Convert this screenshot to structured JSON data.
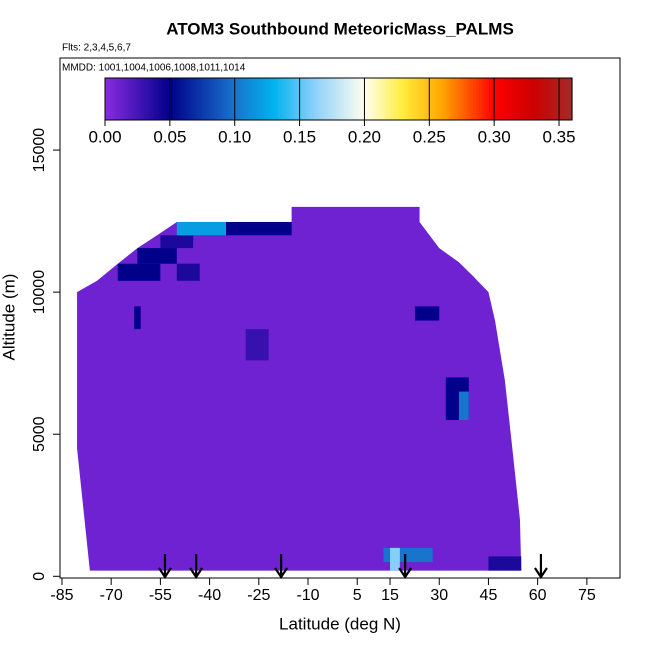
{
  "chart_data": {
    "type": "heatmap",
    "title": "ATOM3 Southbound MeteoricMass_PALMS",
    "subtitle": "Flts: 2,3,4,5,6,7",
    "annotation": "MMDD: 1001,1004,1006,1008,1011,1014",
    "x_label": "Latitude (deg N)",
    "y_label": "Altitude (m)",
    "xlim": [
      -85.6,
      85.1
    ],
    "ylim": [
      -60,
      18240
    ],
    "xticks": [
      -85,
      -70,
      -55,
      -40,
      -25,
      -10,
      5,
      15,
      30,
      45,
      60,
      75
    ],
    "yticks": [
      0,
      5000,
      10000,
      15000
    ],
    "colorbar": {
      "lim": [
        0,
        0.36
      ],
      "ticks": [
        {
          "value": 0,
          "label": "0.00"
        },
        {
          "value": 0.05,
          "label": "0.05"
        },
        {
          "value": 0.1,
          "label": "0.10"
        },
        {
          "value": 0.15,
          "label": "0.15"
        },
        {
          "value": 0.2,
          "label": "0.20"
        },
        {
          "value": 0.25,
          "label": "0.25"
        },
        {
          "value": 0.3,
          "label": "0.30"
        },
        {
          "value": 0.35,
          "label": "0.35"
        }
      ],
      "colorscale": [
        [
          0,
          "#8a2be2"
        ],
        [
          0.05,
          "#00008b"
        ],
        [
          0.1,
          "#1874cd"
        ],
        [
          0.13,
          "#00b2ee"
        ],
        [
          0.16,
          "#87cefa"
        ],
        [
          0.2,
          "#fffff0"
        ],
        [
          0.23,
          "#ffec3b"
        ],
        [
          0.26,
          "#ffa500"
        ],
        [
          0.3,
          "#ff0000"
        ],
        [
          0.33,
          "#cd0000"
        ],
        [
          0.36,
          "#a52a2a"
        ]
      ]
    },
    "domain": {
      "lat": [
        -76.5,
        -80.4,
        -80.4,
        -74.3,
        -68,
        -62,
        -56,
        -50,
        -15,
        -15,
        24,
        24,
        30,
        36,
        40,
        45,
        47,
        50,
        52,
        54.6,
        55
      ],
      "alt": [
        200,
        4500,
        10000,
        10400,
        11000,
        11550,
        12000,
        12470,
        12470,
        13000,
        13000,
        12470,
        11550,
        11050,
        10600,
        10000,
        9000,
        6900,
        4800,
        2000,
        200
      ],
      "value": 0.01
    },
    "patches": {
      "lat0": [
        -68,
        -62,
        -55,
        -50,
        -35,
        -50,
        -63,
        -29,
        22.6,
        32,
        36,
        13,
        15,
        45
      ],
      "lat1": [
        -55,
        -50,
        -45,
        -35,
        -15,
        -43,
        -61,
        -22,
        30,
        39,
        39,
        28,
        18,
        55
      ],
      "alt0": [
        10400,
        11000,
        11550,
        12000,
        12000,
        10400,
        8700,
        7600,
        9000,
        5500,
        5500,
        500,
        200,
        200
      ],
      "alt1": [
        11000,
        11550,
        12000,
        12470,
        12470,
        11000,
        9500,
        8700,
        9500,
        7000,
        6500,
        1000,
        1000,
        700
      ],
      "values": [
        0.05,
        0.05,
        0.04,
        0.12,
        0.05,
        0.04,
        0.05,
        0.03,
        0.05,
        0.05,
        0.1,
        0.1,
        0.16,
        0.04
      ]
    },
    "arrows": [
      -53.6,
      -44.1,
      -18.2,
      19.6,
      61
    ]
  }
}
